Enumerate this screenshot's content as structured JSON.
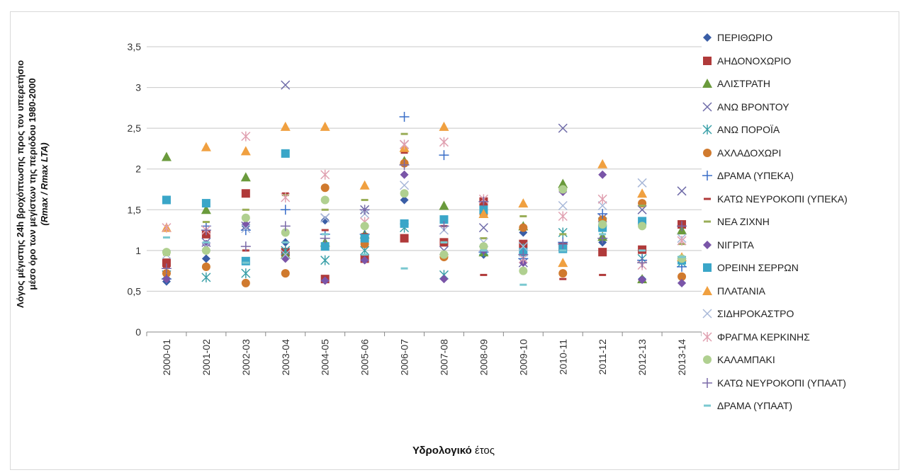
{
  "chart_data": {
    "type": "scatter",
    "xlabel_a": "Υδρολογικό",
    "xlabel_b": "έτος",
    "ylabel_line1": "Λόγος μέγιστης 24h βροχόπτωσης προς τον υπερετήσιο μέσο όρο των μεγίστων της περιόδου 1980-2000",
    "ylabel_line2": "(Rmax / Rmax LTA)",
    "categories": [
      "2000-01",
      "2001-02",
      "2002-03",
      "2003-04",
      "2004-05",
      "2005-06",
      "2006-07",
      "2007-08",
      "2008-09",
      "2009-10",
      "2010-11",
      "2011-12",
      "2012-13",
      "2013-14"
    ],
    "ylim": [
      0,
      3.5
    ],
    "yticks": [
      "0",
      "0,5",
      "1",
      "1,5",
      "2",
      "2,5",
      "3",
      "3,5"
    ],
    "grid": true,
    "legend_position": "right",
    "series": [
      {
        "name": "ΠΕΡΙΘΩΡΙΟ",
        "marker": "diamond",
        "color": "#3a5ea6",
        "values": [
          0.62,
          0.9,
          1.3,
          1.1,
          1.37,
          0.9,
          1.62,
          0.95,
          0.95,
          1.22,
          1.05,
          1.1,
          0.65,
          0.6
        ]
      },
      {
        "name": "ΑΗΔΟΝΟΧΩΡΙΟ",
        "marker": "square",
        "color": "#b03a3a",
        "values": [
          0.85,
          1.2,
          1.7,
          0.98,
          0.65,
          0.9,
          1.15,
          1.1,
          1.6,
          1.08,
          1.05,
          0.98,
          1.01,
          1.32
        ]
      },
      {
        "name": "ΑΛΙΣΤΡΑΤΗ",
        "marker": "triangle",
        "color": "#6a9a3c",
        "values": [
          2.15,
          1.5,
          1.9,
          0.95,
          1.1,
          1.2,
          2.1,
          1.55,
          0.98,
          1.3,
          1.82,
          1.17,
          0.65,
          1.25
        ]
      },
      {
        "name": "ΑΝΩ ΒΡΟΝΤΟΥ",
        "marker": "x",
        "color": "#6e6aa8",
        "values": [
          0.7,
          1.1,
          1.3,
          3.03,
          1.4,
          1.5,
          2.3,
          1.0,
          1.28,
          0.85,
          2.5,
          1.4,
          1.5,
          1.73
        ]
      },
      {
        "name": "ΑΝΩ ΠΟΡΟΪΑ",
        "marker": "asterisk",
        "color": "#3aa0a8",
        "values": [
          0.7,
          0.67,
          0.72,
          1.0,
          0.88,
          1.0,
          1.28,
          0.7,
          1.0,
          1.05,
          1.22,
          1.35,
          0.9,
          0.85
        ]
      },
      {
        "name": "ΑΧΛΑΔΟΧΩΡΙ",
        "marker": "circle",
        "color": "#d07a2e",
        "values": [
          0.72,
          0.8,
          0.6,
          0.72,
          1.77,
          1.08,
          2.07,
          0.92,
          1.45,
          1.28,
          0.72,
          1.38,
          1.58,
          0.68
        ]
      },
      {
        "name": "ΔΡΑΜΑ (ΥΠΕΚΑ)",
        "marker": "plus",
        "color": "#3a6ec8",
        "values": [
          0.65,
          1.3,
          1.25,
          1.5,
          1.2,
          1.2,
          2.64,
          2.17,
          0.98,
          0.9,
          1.1,
          1.45,
          0.88,
          0.8
        ]
      },
      {
        "name": "ΚΑΤΩ ΝΕΥΡΟΚΟΠΙ (ΥΠΕΚΑ)",
        "marker": "dash",
        "color": "#b03a3a",
        "values": [
          0.8,
          1.2,
          1.0,
          1.7,
          1.25,
          1.2,
          2.2,
          1.3,
          0.7,
          1.1,
          0.65,
          0.7,
          1.0,
          1.3
        ]
      },
      {
        "name": "ΝΕΑ ΖΙΧΝΗ",
        "marker": "dash",
        "color": "#9aae58",
        "values": [
          0.95,
          1.35,
          1.5,
          1.68,
          1.5,
          1.62,
          2.43,
          1.1,
          1.15,
          1.42,
          1.2,
          1.35,
          1.55,
          1.08
        ]
      },
      {
        "name": "ΝΙΓΡΙΤΑ",
        "marker": "diamond",
        "color": "#7a55a8",
        "values": [
          0.65,
          1.08,
          1.32,
          0.9,
          0.63,
          0.88,
          1.93,
          0.65,
          1.0,
          0.85,
          1.72,
          1.93,
          0.64,
          0.6
        ]
      },
      {
        "name": "ΟΡΕΙΝΗ ΣΕΡΡΩΝ",
        "marker": "square",
        "color": "#3aa6c8",
        "values": [
          1.62,
          1.58,
          0.87,
          2.19,
          1.05,
          1.15,
          1.33,
          1.38,
          1.5,
          0.98,
          1.02,
          1.28,
          1.36,
          0.88
        ]
      },
      {
        "name": "ΠΛΑΤΑΝΙΑ",
        "marker": "triangle",
        "color": "#f0a040",
        "values": [
          1.28,
          2.27,
          2.22,
          2.52,
          2.52,
          1.8,
          2.26,
          2.52,
          1.45,
          1.58,
          0.85,
          2.06,
          1.7,
          0.92
        ]
      },
      {
        "name": "ΣΙΔΗΡΟΚΑΣΤΡΟ",
        "marker": "x",
        "color": "#a8b8d8",
        "values": [
          0.95,
          1.05,
          1.27,
          0.95,
          1.4,
          1.45,
          1.8,
          1.25,
          1.1,
          1.05,
          1.55,
          1.55,
          1.83,
          1.15
        ]
      },
      {
        "name": "ΦΡΑΓΜΑ ΚΕΡΚΙΝΗΣ",
        "marker": "asterisk",
        "color": "#e0a0b0",
        "values": [
          1.28,
          1.25,
          2.4,
          1.65,
          1.93,
          1.35,
          2.3,
          2.33,
          1.63,
          0.9,
          1.42,
          1.63,
          0.82,
          1.12
        ]
      },
      {
        "name": "ΚΑΛΑΜΠΑΚΙ",
        "marker": "circle",
        "color": "#b0d090",
        "values": [
          0.98,
          1.0,
          1.4,
          1.22,
          1.62,
          1.3,
          1.7,
          0.95,
          1.05,
          0.75,
          1.75,
          1.32,
          1.3,
          0.9
        ]
      },
      {
        "name": "ΚΑΤΩ ΝΕΥΡΟΚΟΠΙ (ΥΠΑΑΤ)",
        "marker": "plus",
        "color": "#7a6aa8",
        "values": [
          0.78,
          1.25,
          1.05,
          1.3,
          1.15,
          1.5,
          2.05,
          1.3,
          1.6,
          0.95,
          1.08,
          1.15,
          0.85,
          1.3
        ]
      },
      {
        "name": "ΔΡΑΜΑ (ΥΠΑΑΤ)",
        "marker": "dash",
        "color": "#7ac8d0",
        "values": [
          1.16,
          1.1,
          0.85,
          1.1,
          1.2,
          0.95,
          0.78,
          1.1,
          1.0,
          0.58,
          1.0,
          1.2,
          1.0,
          0.92
        ]
      }
    ]
  }
}
